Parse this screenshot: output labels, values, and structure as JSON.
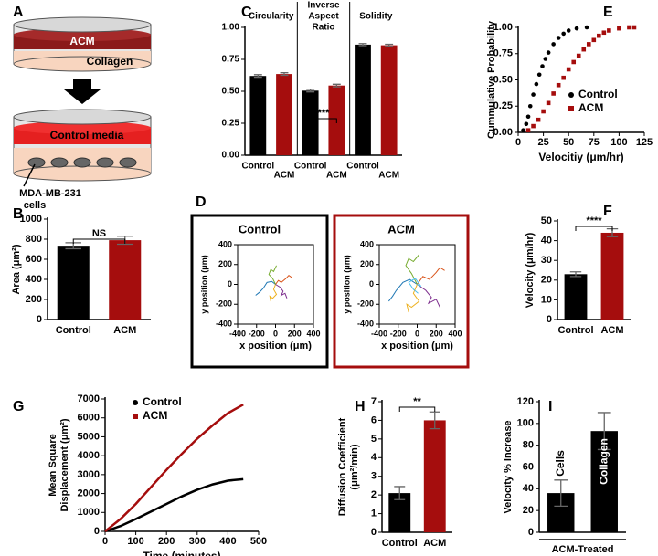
{
  "panel_labels": [
    "A",
    "B",
    "C",
    "D",
    "E",
    "F",
    "G",
    "H",
    "I"
  ],
  "diagram": {
    "top_layer": "ACM",
    "bottom_layer": "Collagen",
    "media_layer": "Control media",
    "cells_label": [
      "MDA-MB-231",
      "cells"
    ]
  },
  "chart_data": [
    {
      "type": "bar",
      "ylabel": "Area (μm²)",
      "categories": [
        "Control",
        "ACM"
      ],
      "values": [
        735,
        790
      ],
      "errors": [
        30,
        40
      ],
      "colors": [
        "#000000",
        "#a50d0d"
      ],
      "ylim": [
        0,
        1000
      ],
      "yticks": [
        0,
        200,
        400,
        600,
        800,
        1000
      ],
      "annotation": "NS"
    },
    {
      "type": "bar",
      "group_labels": [
        [
          "Circularity"
        ],
        [
          "Inverse",
          "Aspect",
          "Ratio"
        ],
        [
          "Solidity"
        ]
      ],
      "categories": [
        "Control",
        "ACM",
        "Control",
        "ACM",
        "Control",
        "ACM"
      ],
      "values": [
        0.62,
        0.635,
        0.505,
        0.545,
        0.865,
        0.86
      ],
      "errors": [
        0.01,
        0.01,
        0.01,
        0.01,
        0.008,
        0.008
      ],
      "colors": [
        "#000000",
        "#a50d0d",
        "#000000",
        "#a50d0d",
        "#000000",
        "#a50d0d"
      ],
      "ylim": [
        0,
        1
      ],
      "yticks": [
        {
          "value": 0,
          "label": "0.00"
        },
        {
          "value": 0.25,
          "label": "0.25"
        },
        {
          "value": 0.5,
          "label": "0.50"
        },
        {
          "value": 0.75,
          "label": "0.75"
        },
        {
          "value": 1,
          "label": "1.00"
        }
      ],
      "annotation": "***"
    },
    {
      "type": "line",
      "title": "Control",
      "xlabel": "x position (μm)",
      "ylabel": "y position (μm)",
      "xlim": [
        -400,
        400
      ],
      "xticks": [
        -400,
        -200,
        0,
        200,
        400
      ],
      "ylim": [
        -400,
        400
      ],
      "yticks": [
        -400,
        -200,
        0,
        200,
        400
      ],
      "series": [
        {
          "color": "#1f77b4",
          "x": [
            0,
            -40,
            -90,
            -130,
            -170,
            -210
          ],
          "values": [
            0,
            30,
            20,
            -40,
            -80,
            -110
          ]
        },
        {
          "color": "#d95319",
          "x": [
            0,
            30,
            60,
            110,
            140,
            170
          ],
          "values": [
            0,
            40,
            20,
            60,
            90,
            70
          ]
        },
        {
          "color": "#edb120",
          "x": [
            0,
            -20,
            10,
            -30,
            -60,
            -50
          ],
          "values": [
            0,
            -50,
            -100,
            -140,
            -120,
            -170
          ]
        },
        {
          "color": "#7e2f8e",
          "x": [
            0,
            50,
            80,
            60,
            100,
            120
          ],
          "values": [
            0,
            -30,
            -70,
            -110,
            -90,
            -140
          ]
        },
        {
          "color": "#77ac30",
          "x": [
            0,
            -30,
            -70,
            -50,
            -20,
            10
          ],
          "values": [
            0,
            60,
            100,
            150,
            130,
            190
          ]
        }
      ]
    },
    {
      "type": "line",
      "title": "ACM",
      "xlabel": "x position (μm)",
      "ylabel": "y position (μm)",
      "xlim": [
        -400,
        400
      ],
      "xticks": [
        -400,
        -200,
        0,
        200,
        400
      ],
      "ylim": [
        -400,
        400
      ],
      "yticks": [
        -400,
        -200,
        0,
        200,
        400
      ],
      "series": [
        {
          "color": "#1f77b4",
          "x": [
            0,
            -80,
            -150,
            -220,
            -260,
            -300
          ],
          "values": [
            0,
            50,
            20,
            -60,
            -120,
            -170
          ]
        },
        {
          "color": "#d95319",
          "x": [
            0,
            60,
            130,
            200,
            240,
            290
          ],
          "values": [
            0,
            80,
            50,
            120,
            170,
            140
          ]
        },
        {
          "color": "#edb120",
          "x": [
            0,
            -40,
            20,
            -60,
            -110,
            -90
          ],
          "values": [
            0,
            -90,
            -170,
            -230,
            -200,
            -280
          ]
        },
        {
          "color": "#7e2f8e",
          "x": [
            0,
            90,
            150,
            120,
            200,
            240
          ],
          "values": [
            0,
            -60,
            -130,
            -190,
            -150,
            -230
          ]
        },
        {
          "color": "#77ac30",
          "x": [
            0,
            -60,
            -120,
            -90,
            -40,
            20
          ],
          "values": [
            0,
            110,
            190,
            260,
            230,
            300
          ]
        },
        {
          "color": "#4dbeee",
          "x": [
            0,
            40,
            -20,
            -90,
            -40,
            10
          ],
          "values": [
            0,
            -20,
            60,
            20,
            -50,
            -90
          ]
        }
      ]
    },
    {
      "type": "scatter",
      "xlabel": "Velocitiy (μm/hr)",
      "ylabel": "Cummulative Probability",
      "xlim": [
        0,
        125
      ],
      "xticks": [
        0,
        25,
        50,
        75,
        100,
        125
      ],
      "ylim": [
        0,
        1
      ],
      "yticks": [
        {
          "value": 0,
          "label": "0.00"
        },
        {
          "value": 0.25,
          "label": "0.25"
        },
        {
          "value": 0.5,
          "label": "0.50"
        },
        {
          "value": 0.75,
          "label": "0.75"
        },
        {
          "value": 1,
          "label": "1.00"
        }
      ],
      "series": [
        {
          "name": "Control",
          "color": "#000000",
          "marker": "circle",
          "x": [
            5,
            8,
            10,
            12,
            15,
            18,
            21,
            24,
            27,
            30,
            35,
            40,
            45,
            50,
            58,
            68
          ],
          "values": [
            0.02,
            0.08,
            0.15,
            0.25,
            0.36,
            0.46,
            0.55,
            0.63,
            0.7,
            0.76,
            0.84,
            0.9,
            0.94,
            0.97,
            0.99,
            1.0
          ]
        },
        {
          "name": "ACM",
          "color": "#a50d0d",
          "marker": "square",
          "x": [
            10,
            15,
            20,
            25,
            30,
            35,
            40,
            45,
            50,
            55,
            60,
            65,
            70,
            75,
            80,
            85,
            90,
            100,
            110,
            115
          ],
          "values": [
            0.02,
            0.06,
            0.12,
            0.2,
            0.28,
            0.37,
            0.45,
            0.52,
            0.6,
            0.67,
            0.73,
            0.79,
            0.84,
            0.88,
            0.92,
            0.95,
            0.97,
            0.99,
            1.0,
            1.0
          ]
        }
      ]
    },
    {
      "type": "bar",
      "ylabel": "Velocity (μm/hr)",
      "categories": [
        "Control",
        "ACM"
      ],
      "values": [
        23,
        44
      ],
      "errors": [
        1.2,
        2
      ],
      "colors": [
        "#000000",
        "#a50d0d"
      ],
      "ylim": [
        0,
        50
      ],
      "yticks": [
        0,
        10,
        20,
        30,
        40,
        50
      ],
      "annotation": "****"
    },
    {
      "type": "line",
      "xlabel": "Time (minutes)",
      "ylabel": [
        "Mean Square",
        "Displacement (μm²)"
      ],
      "xlim": [
        0,
        500
      ],
      "xticks": [
        0,
        100,
        200,
        300,
        400,
        500
      ],
      "ylim": [
        0,
        7000
      ],
      "yticks": [
        0,
        1000,
        2000,
        3000,
        4000,
        5000,
        6000,
        7000
      ],
      "series": [
        {
          "name": "Control",
          "color": "#000000",
          "marker": "circle",
          "x": [
            0,
            50,
            100,
            150,
            200,
            250,
            300,
            350,
            400,
            450
          ],
          "values": [
            0,
            280,
            650,
            1050,
            1450,
            1850,
            2200,
            2480,
            2680,
            2760
          ]
        },
        {
          "name": "ACM",
          "color": "#a50d0d",
          "marker": "square",
          "x": [
            0,
            50,
            100,
            150,
            200,
            250,
            300,
            350,
            400,
            450
          ],
          "values": [
            0,
            650,
            1450,
            2350,
            3250,
            4100,
            4900,
            5600,
            6250,
            6700
          ]
        }
      ]
    },
    {
      "type": "bar",
      "ylabel": [
        "Diffusion  Coefficient",
        "(μm²/min)"
      ],
      "categories": [
        "Control",
        "ACM"
      ],
      "values": [
        2.1,
        6.0
      ],
      "errors": [
        0.35,
        0.45
      ],
      "colors": [
        "#000000",
        "#a50d0d"
      ],
      "ylim": [
        0,
        7
      ],
      "yticks": [
        0,
        1,
        2,
        3,
        4,
        5,
        6,
        7
      ],
      "annotation": "**"
    },
    {
      "type": "bar",
      "ylabel": "Velocity % Increase",
      "categories": [
        "Cells",
        "Collagen"
      ],
      "values": [
        36,
        93
      ],
      "errors": [
        12,
        17
      ],
      "colors": [
        "#000000",
        "#000000"
      ],
      "ylim": [
        0,
        120
      ],
      "yticks": [
        0,
        20,
        40,
        60,
        80,
        100,
        120
      ],
      "group_label": "ACM-Treated"
    }
  ]
}
